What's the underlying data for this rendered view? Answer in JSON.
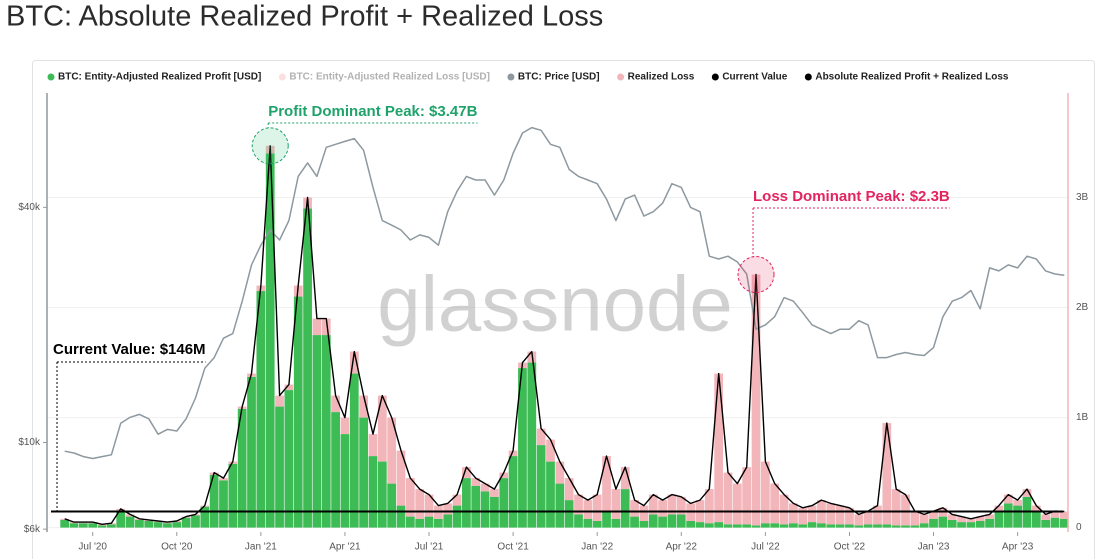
{
  "chart_data": {
    "type": "bar",
    "title": "BTC: Absolute Realized Profit + Realized Loss",
    "watermark": "glassnode",
    "categories": [
      null,
      null,
      null,
      "Jul '20",
      null,
      null,
      null,
      null,
      null,
      null,
      null,
      null,
      "Oct '20",
      null,
      null,
      null,
      null,
      null,
      null,
      null,
      null,
      "Jan '21",
      null,
      null,
      null,
      null,
      null,
      null,
      null,
      null,
      "Apr '21",
      null,
      null,
      null,
      null,
      null,
      null,
      null,
      null,
      "Jul '21",
      null,
      null,
      null,
      null,
      null,
      null,
      null,
      null,
      "Oct '21",
      null,
      null,
      null,
      null,
      null,
      null,
      null,
      null,
      "Jan '22",
      null,
      null,
      null,
      null,
      null,
      null,
      null,
      null,
      "Apr '22",
      null,
      null,
      null,
      null,
      null,
      null,
      null,
      null,
      "Jul '22",
      null,
      null,
      null,
      null,
      null,
      null,
      null,
      null,
      "Oct '22",
      null,
      null,
      null,
      null,
      null,
      null,
      null,
      null,
      "Jan '23",
      null,
      null,
      null,
      null,
      null,
      null,
      null,
      null,
      "Apr '23",
      null,
      null,
      null,
      null,
      null
    ],
    "series": [
      {
        "name": "BTC: Entity-Adjusted Realized Profit [USD]",
        "type": "bar",
        "color": "#3dbb55",
        "axis": "y2",
        "values": [
          70000000.0,
          40000000.0,
          40000000.0,
          40000000.0,
          20000000.0,
          30000000.0,
          150000000.0,
          100000000.0,
          70000000.0,
          60000000.0,
          50000000.0,
          40000000.0,
          50000000.0,
          90000000.0,
          110000000.0,
          190000000.0,
          480000000.0,
          430000000.0,
          580000000.0,
          1080000000.0,
          1370000000.0,
          2150000000.0,
          3400000000.0,
          1100000000.0,
          1250000000.0,
          2100000000.0,
          2900000000.0,
          1750000000.0,
          1750000000.0,
          1050000000.0,
          850000000.0,
          1400000000.0,
          1000000000.0,
          650000000.0,
          600000000.0,
          400000000.0,
          200000000.0,
          100000000.0,
          80000000.0,
          100000000.0,
          80000000.0,
          120000000.0,
          200000000.0,
          450000000.0,
          380000000.0,
          330000000.0,
          280000000.0,
          450000000.0,
          650000000.0,
          1450000000.0,
          1500000000.0,
          750000000.0,
          600000000.0,
          400000000.0,
          250000000.0,
          120000000.0,
          80000000.0,
          60000000.0,
          150000000.0,
          80000000.0,
          350000000.0,
          100000000.0,
          60000000.0,
          120000000.0,
          100000000.0,
          120000000.0,
          120000000.0,
          60000000.0,
          50000000.0,
          40000000.0,
          50000000.0,
          30000000.0,
          30000000.0,
          30000000.0,
          20000000.0,
          40000000.0,
          40000000.0,
          30000000.0,
          40000000.0,
          30000000.0,
          50000000.0,
          40000000.0,
          30000000.0,
          30000000.0,
          30000000.0,
          20000000.0,
          30000000.0,
          30000000.0,
          30000000.0,
          20000000.0,
          20000000.0,
          20000000.0,
          40000000.0,
          80000000.0,
          100000000.0,
          70000000.0,
          50000000.0,
          50000000.0,
          60000000.0,
          80000000.0,
          150000000.0,
          220000000.0,
          200000000.0,
          280000000.0,
          140000000.0,
          70000000.0,
          90000000.0,
          80000000.0
        ]
      },
      {
        "name": "BTC: Entity-Adjusted Realized Loss [USD]",
        "color": "#f4a7ac",
        "visible": false
      },
      {
        "name": "BTC: Price [USD]",
        "type": "line",
        "color": "#8d989f",
        "axis": "y",
        "values": [
          9500,
          9400,
          9200,
          9100,
          9200,
          9300,
          11200,
          11600,
          11800,
          11500,
          10500,
          10800,
          10700,
          11500,
          13000,
          15500,
          16500,
          18500,
          19000,
          23000,
          28500,
          32000,
          35000,
          33000,
          37000,
          48000,
          52000,
          48000,
          57000,
          58000,
          59000,
          60000,
          56000,
          45000,
          37000,
          36000,
          35000,
          33000,
          34000,
          33500,
          32000,
          39000,
          44000,
          48000,
          47000,
          47000,
          43000,
          47000,
          55000,
          62000,
          64000,
          63000,
          58000,
          57000,
          50000,
          48000,
          47000,
          46000,
          42000,
          37000,
          42000,
          43000,
          38000,
          39000,
          41000,
          46000,
          45000,
          40000,
          39000,
          30000,
          29500,
          30000,
          29000,
          27000,
          19500,
          20000,
          21000,
          23500,
          23000,
          21500,
          20000,
          19500,
          19000,
          19500,
          19500,
          20500,
          20000,
          16500,
          16500,
          16800,
          17000,
          16800,
          16700,
          17500,
          21000,
          23000,
          23500,
          24500,
          22000,
          28000,
          27500,
          28500,
          28000,
          30000,
          29500,
          27500,
          27000,
          26800
        ]
      },
      {
        "name": "Realized Loss",
        "type": "bar",
        "color": "#f2b6ba",
        "axis": "y2"
      },
      {
        "name": "Current Value",
        "type": "line",
        "color": "#000000",
        "axis": "y2",
        "value": 146000000
      },
      {
        "name": "Absolute Realized Profit + Realized Loss",
        "type": "line",
        "color": "#000000",
        "axis": "y2",
        "values": [
          80000000.0,
          50000000.0,
          50000000.0,
          50000000.0,
          30000000.0,
          40000000.0,
          170000000.0,
          120000000.0,
          80000000.0,
          70000000.0,
          60000000.0,
          50000000.0,
          60000000.0,
          100000000.0,
          120000000.0,
          200000000.0,
          500000000.0,
          450000000.0,
          600000000.0,
          1100000000.0,
          1400000000.0,
          2200000000.0,
          3470000000.0,
          1200000000.0,
          1300000000.0,
          2200000000.0,
          3000000000.0,
          1900000000.0,
          1900000000.0,
          1200000000.0,
          1000000000.0,
          1600000000.0,
          1200000000.0,
          850000000.0,
          1200000000.0,
          1000000000.0,
          700000000.0,
          450000000.0,
          350000000.0,
          300000000.0,
          200000000.0,
          220000000.0,
          300000000.0,
          550000000.0,
          450000000.0,
          400000000.0,
          350000000.0,
          500000000.0,
          700000000.0,
          1500000000.0,
          1600000000.0,
          900000000.0,
          800000000.0,
          600000000.0,
          450000000.0,
          300000000.0,
          250000000.0,
          300000000.0,
          650000000.0,
          350000000.0,
          550000000.0,
          250000000.0,
          200000000.0,
          300000000.0,
          250000000.0,
          300000000.0,
          280000000.0,
          220000000.0,
          250000000.0,
          350000000.0,
          1400000000.0,
          500000000.0,
          400000000.0,
          550000000.0,
          2300000000.0,
          600000000.0,
          400000000.0,
          300000000.0,
          220000000.0,
          180000000.0,
          200000000.0,
          250000000.0,
          220000000.0,
          200000000.0,
          180000000.0,
          120000000.0,
          150000000.0,
          200000000.0,
          950000000.0,
          350000000.0,
          300000000.0,
          150000000.0,
          120000000.0,
          150000000.0,
          180000000.0,
          120000000.0,
          100000000.0,
          80000000.0,
          100000000.0,
          120000000.0,
          200000000.0,
          300000000.0,
          250000000.0,
          350000000.0,
          200000000.0,
          120000000.0,
          150000000.0,
          146000000.0
        ]
      }
    ],
    "ylim": [
      5900,
      78500
    ],
    "log_y": true,
    "yticks": [
      {
        "value": 6000,
        "label": "$6k"
      },
      {
        "value": 10000,
        "label": "$10k"
      },
      {
        "value": 40000,
        "label": "$40k"
      }
    ],
    "y2lim": [
      -40000000.0,
      3950000000.0
    ],
    "y2ticks": [
      0,
      {
        "value": 1000000000.0,
        "label": "1B"
      },
      {
        "value": 2000000000.0,
        "label": "2B"
      },
      {
        "value": 3000000000.0,
        "label": "3B"
      }
    ],
    "grid": true,
    "legend": "top-left",
    "annotations": {
      "profit_peak": {
        "text": "Profit Dominant Peak: $3.47B",
        "color": "#1fa36b"
      },
      "loss_peak": {
        "text": "Loss Dominant Peak: $2.3B",
        "color": "#e3245f"
      },
      "current": {
        "text": "Current Value: $146M",
        "color": "#000000"
      }
    }
  }
}
